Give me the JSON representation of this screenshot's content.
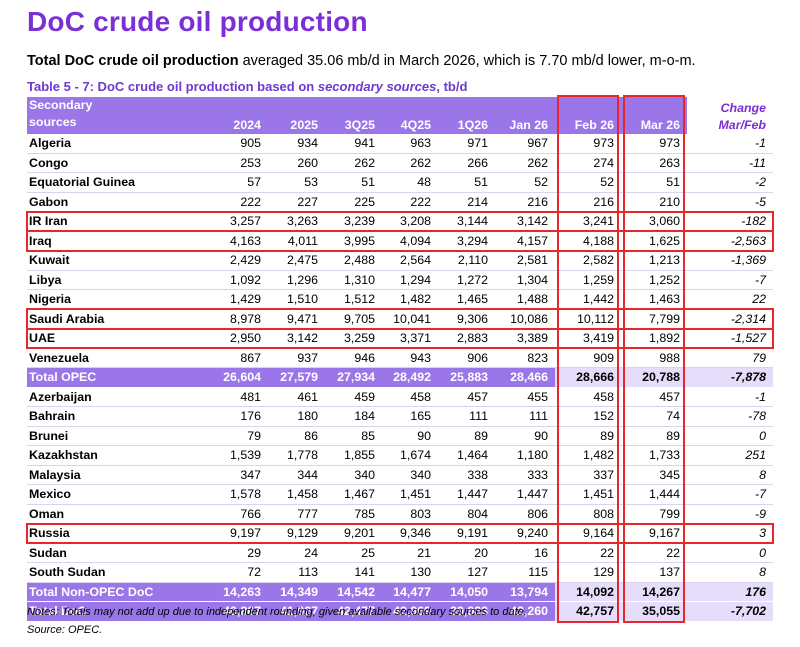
{
  "title": "DoC crude oil production",
  "subtitle_bold": "Total DoC crude oil production",
  "subtitle_rest": " averaged 35.06 mb/d in March 2026, which is 7.70 mb/d lower, m-o-m.",
  "caption_main": "Table 5 - 7: DoC crude oil production based on ",
  "caption_italic": "secondary sources",
  "caption_end": ", tb/d",
  "header": {
    "name_line1": "Secondary",
    "name_line2": "sources",
    "columns": [
      "2024",
      "2025",
      "3Q25",
      "4Q25",
      "1Q26",
      "Jan 26",
      "Feb 26",
      "Mar 26"
    ],
    "change_line1": "Change",
    "change_line2": "Mar/Feb"
  },
  "rows": [
    {
      "name": "Algeria",
      "values": [
        "905",
        "934",
        "941",
        "963",
        "971",
        "967",
        "973",
        "973"
      ],
      "change": "-1",
      "type": "row"
    },
    {
      "name": "Congo",
      "values": [
        "253",
        "260",
        "262",
        "262",
        "266",
        "262",
        "274",
        "263"
      ],
      "change": "-11",
      "type": "row"
    },
    {
      "name": "Equatorial Guinea",
      "values": [
        "57",
        "53",
        "51",
        "48",
        "51",
        "52",
        "52",
        "51"
      ],
      "change": "-2",
      "type": "row"
    },
    {
      "name": "Gabon",
      "values": [
        "222",
        "227",
        "225",
        "222",
        "214",
        "216",
        "216",
        "210"
      ],
      "change": "-5",
      "type": "row"
    },
    {
      "name": "IR Iran",
      "values": [
        "3,257",
        "3,263",
        "3,239",
        "3,208",
        "3,144",
        "3,142",
        "3,241",
        "3,060"
      ],
      "change": "-182",
      "type": "row",
      "highlight": true
    },
    {
      "name": "Iraq",
      "values": [
        "4,163",
        "4,011",
        "3,995",
        "4,094",
        "3,294",
        "4,157",
        "4,188",
        "1,625"
      ],
      "change": "-2,563",
      "type": "row",
      "highlight": true
    },
    {
      "name": "Kuwait",
      "values": [
        "2,429",
        "2,475",
        "2,488",
        "2,564",
        "2,110",
        "2,581",
        "2,582",
        "1,213"
      ],
      "change": "-1,369",
      "type": "row"
    },
    {
      "name": "Libya",
      "values": [
        "1,092",
        "1,296",
        "1,310",
        "1,294",
        "1,272",
        "1,304",
        "1,259",
        "1,252"
      ],
      "change": "-7",
      "type": "row"
    },
    {
      "name": "Nigeria",
      "values": [
        "1,429",
        "1,510",
        "1,512",
        "1,482",
        "1,465",
        "1,488",
        "1,442",
        "1,463"
      ],
      "change": "22",
      "type": "row"
    },
    {
      "name": "Saudi Arabia",
      "values": [
        "8,978",
        "9,471",
        "9,705",
        "10,041",
        "9,306",
        "10,086",
        "10,112",
        "7,799"
      ],
      "change": "-2,314",
      "type": "row",
      "highlight": true
    },
    {
      "name": "UAE",
      "values": [
        "2,950",
        "3,142",
        "3,259",
        "3,371",
        "2,883",
        "3,389",
        "3,419",
        "1,892"
      ],
      "change": "-1,527",
      "type": "row",
      "highlight": true
    },
    {
      "name": "Venezuela",
      "values": [
        "867",
        "937",
        "946",
        "943",
        "906",
        "823",
        "909",
        "988"
      ],
      "change": "79",
      "type": "row"
    },
    {
      "name": "Total  OPEC",
      "values": [
        "26,604",
        "27,579",
        "27,934",
        "28,492",
        "25,883",
        "28,466",
        "28,666",
        "20,788"
      ],
      "change": "-7,878",
      "type": "total"
    },
    {
      "name": "Azerbaijan",
      "values": [
        "481",
        "461",
        "459",
        "458",
        "457",
        "455",
        "458",
        "457"
      ],
      "change": "-1",
      "type": "row"
    },
    {
      "name": "Bahrain",
      "values": [
        "176",
        "180",
        "184",
        "165",
        "111",
        "111",
        "152",
        "74"
      ],
      "change": "-78",
      "type": "row"
    },
    {
      "name": "Brunei",
      "values": [
        "79",
        "86",
        "85",
        "90",
        "89",
        "90",
        "89",
        "89"
      ],
      "change": "0",
      "type": "row"
    },
    {
      "name": "Kazakhstan",
      "values": [
        "1,539",
        "1,778",
        "1,855",
        "1,674",
        "1,464",
        "1,180",
        "1,482",
        "1,733"
      ],
      "change": "251",
      "type": "row"
    },
    {
      "name": "Malaysia",
      "values": [
        "347",
        "344",
        "340",
        "340",
        "338",
        "333",
        "337",
        "345"
      ],
      "change": "8",
      "type": "row"
    },
    {
      "name": "Mexico",
      "values": [
        "1,578",
        "1,458",
        "1,467",
        "1,451",
        "1,447",
        "1,447",
        "1,451",
        "1,444"
      ],
      "change": "-7",
      "type": "row"
    },
    {
      "name": "Oman",
      "values": [
        "766",
        "777",
        "785",
        "803",
        "804",
        "806",
        "808",
        "799"
      ],
      "change": "-9",
      "type": "row"
    },
    {
      "name": "Russia",
      "values": [
        "9,197",
        "9,129",
        "9,201",
        "9,346",
        "9,191",
        "9,240",
        "9,164",
        "9,167"
      ],
      "change": "3",
      "type": "row",
      "highlight": true
    },
    {
      "name": "Sudan",
      "values": [
        "29",
        "24",
        "25",
        "21",
        "20",
        "16",
        "22",
        "22"
      ],
      "change": "0",
      "type": "row"
    },
    {
      "name": "South Sudan",
      "values": [
        "72",
        "113",
        "141",
        "130",
        "127",
        "115",
        "129",
        "137"
      ],
      "change": "8",
      "type": "row"
    },
    {
      "name": "Total Non-OPEC DoC",
      "values": [
        "14,263",
        "14,349",
        "14,542",
        "14,477",
        "14,050",
        "13,794",
        "14,092",
        "14,267"
      ],
      "change": "176",
      "type": "total"
    },
    {
      "name": "Total DoC",
      "values": [
        "40,867",
        "41,927",
        "42,477",
        "42,969",
        "39,933",
        "42,260",
        "42,757",
        "35,055"
      ],
      "change": "-7,702",
      "type": "total"
    }
  ],
  "notes": "Notes: Totals may not add up due to independent rounding, given available secondary sources to date.",
  "source": "Source: OPEC.",
  "colors": {
    "accent": "#7b2fd6",
    "header_fill": "#9a76e8",
    "highlight_border": "#e8262c"
  }
}
